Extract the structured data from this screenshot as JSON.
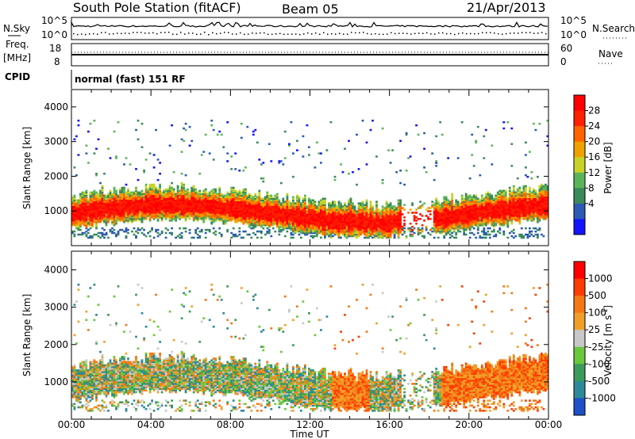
{
  "header": {
    "station": "South Pole Station (fitACF)",
    "beam": "Beam 05",
    "date": "21/Apr/2013"
  },
  "top_panels": {
    "nsky_label": "N.Sky",
    "nsky_ticks": [
      "10^5",
      "10^0"
    ],
    "nsearch_label": "N.Search",
    "nsearch_ticks": [
      "10^5",
      "10^0"
    ],
    "freq_label_1": "Freq.",
    "freq_label_2": "[MHz]",
    "freq_ticks": [
      "18",
      "8"
    ],
    "nave_label": "Nave",
    "nave_ticks": [
      "60",
      "0"
    ],
    "cpid_label": "CPID",
    "cpid_value": "normal (fast) 151 RF"
  },
  "colors": {
    "power_scale": [
      "#1414ff",
      "#2c5ab4",
      "#3a8a5a",
      "#5ab55a",
      "#c8d228",
      "#f0a000",
      "#ff6400",
      "#ff2000",
      "#ff0000"
    ],
    "velocity_scale": [
      "#1e50c8",
      "#2e8a9a",
      "#3c9a5a",
      "#6ac83c",
      "#c8c8c8",
      "#f0a028",
      "#f57814",
      "#ff3c00",
      "#ff0000"
    ]
  },
  "chart_data": [
    {
      "type": "heatmap",
      "title": "",
      "xlabel": "Time UT",
      "ylabel": "Slant Range [km]",
      "x_ticks": [
        "00:00",
        "04:00",
        "08:00",
        "12:00",
        "16:00",
        "20:00",
        "00:00"
      ],
      "xlim": [
        0,
        24
      ],
      "ylim": [
        0,
        4500
      ],
      "y_ticks": [
        "1000",
        "2000",
        "3000",
        "4000"
      ],
      "colorbar": {
        "label": "Power [dB]",
        "ticks": [
          "4",
          "8",
          "12",
          "16",
          "20",
          "24",
          "28"
        ],
        "range": [
          0,
          30
        ]
      }
    },
    {
      "type": "heatmap",
      "title": "",
      "xlabel": "Time UT",
      "ylabel": "Slant Range [km]",
      "x_ticks": [
        "00:00",
        "04:00",
        "08:00",
        "12:00",
        "16:00",
        "20:00",
        "00:00"
      ],
      "xlim": [
        0,
        24
      ],
      "ylim": [
        0,
        4500
      ],
      "y_ticks": [
        "1000",
        "2000",
        "3000",
        "4000"
      ],
      "colorbar": {
        "label": "Velocity [m s",
        "label_sup": "-1",
        "label_end": "]",
        "ticks": [
          "1000",
          "500",
          "100",
          "25",
          "-25",
          "-100",
          "-500",
          "-1000"
        ]
      }
    }
  ]
}
